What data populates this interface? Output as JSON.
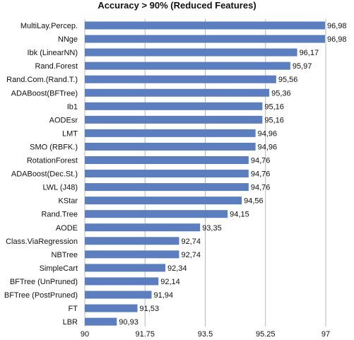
{
  "chart_data": {
    "type": "bar",
    "orientation": "horizontal",
    "title": "Accuracy > 90% (Reduced Features)",
    "categories": [
      "MultiLay.Percep.",
      "NNge",
      "Ibk (LinearNN)",
      "Rand.Forest",
      "Rand.Com.(Rand.T.)",
      "ADABoost(BFTree)",
      "Ib1",
      "AODEsr",
      "LMT",
      "SMO (RBFK.)",
      "RotationForest",
      "ADABoost(Dec.St.)",
      "LWL (J48)",
      "KStar",
      "Rand.Tree",
      "AODE",
      "Class.ViaRegression",
      "NBTree",
      "SimpleCart",
      "BFTree (UnPruned)",
      "BFTree (PostPruned)",
      "FT",
      "LBR"
    ],
    "values": [
      96.98,
      96.98,
      96.17,
      95.97,
      95.56,
      95.36,
      95.16,
      95.16,
      94.96,
      94.96,
      94.76,
      94.76,
      94.76,
      94.56,
      94.15,
      93.35,
      92.74,
      92.74,
      92.34,
      92.14,
      91.94,
      91.53,
      90.93
    ],
    "value_labels": [
      "96,98",
      "96,98",
      "96,17",
      "95,97",
      "95,56",
      "95,36",
      "95,16",
      "95,16",
      "94,96",
      "94,96",
      "94,76",
      "94,76",
      "94,76",
      "94,56",
      "94,15",
      "93,35",
      "92,74",
      "92,74",
      "92,34",
      "92,14",
      "91,94",
      "91,53",
      "90,93"
    ],
    "xlim": [
      90,
      97
    ],
    "xticks": [
      90,
      91.75,
      93.5,
      95.25,
      97
    ],
    "xtick_labels": [
      "90",
      "91.75",
      "93.5",
      "95.25",
      "97"
    ],
    "xlabel": "",
    "ylabel": "",
    "grid": "vertical",
    "legend": "none",
    "bar_color": "#5a7ec0",
    "grid_color": "#b8b8b8"
  }
}
